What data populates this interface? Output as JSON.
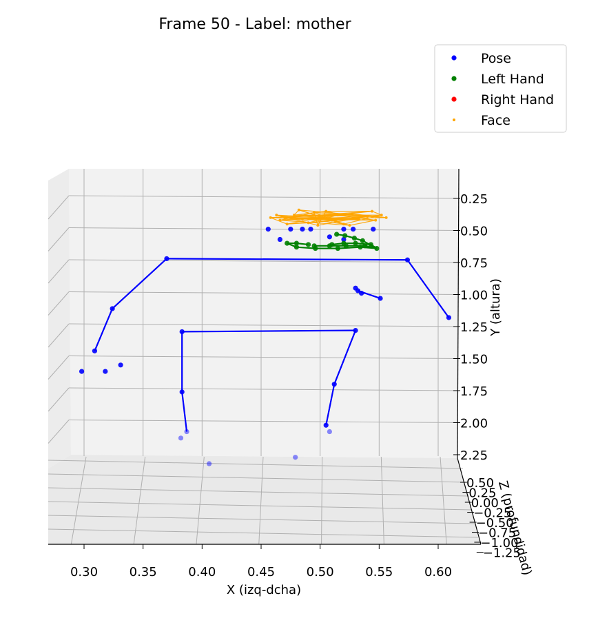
{
  "chart_data": {
    "type": "scatter",
    "title": "Frame 50 - Label: mother",
    "xlabel": "X (izq-dcha)",
    "ylabel": "Y (altura)",
    "zlabel": "Z (profundidad)",
    "xlim": [
      0.27,
      0.63
    ],
    "ylim": [
      0.1,
      2.25
    ],
    "y_inverted": true,
    "x_ticks": [
      "0.30",
      "0.35",
      "0.40",
      "0.45",
      "0.50",
      "0.55",
      "0.60"
    ],
    "y_ticks": [
      "0.25",
      "0.50",
      "0.75",
      "1.00",
      "1.25",
      "1.50",
      "1.75",
      "2.00",
      "2.25"
    ],
    "z_ticks": [
      "0.50",
      "0.25",
      "0.00",
      "−0.25",
      "−0.50",
      "−0.75",
      "−1.00",
      "−1.25"
    ],
    "grid": true,
    "legend_position": "top-right",
    "legend": [
      {
        "label": "Pose",
        "color": "#0000ff"
      },
      {
        "label": "Left Hand",
        "color": "#008000"
      },
      {
        "label": "Right Hand",
        "color": "#ff0000"
      },
      {
        "label": "Face",
        "color": "#ffa500"
      }
    ],
    "series": [
      {
        "name": "Pose",
        "color": "#0000ff",
        "points": [
          {
            "x": 0.456,
            "y": 0.49
          },
          {
            "x": 0.475,
            "y": 0.49
          },
          {
            "x": 0.485,
            "y": 0.49
          },
          {
            "x": 0.492,
            "y": 0.49
          },
          {
            "x": 0.52,
            "y": 0.49
          },
          {
            "x": 0.528,
            "y": 0.49
          },
          {
            "x": 0.545,
            "y": 0.49
          },
          {
            "x": 0.466,
            "y": 0.57
          },
          {
            "x": 0.508,
            "y": 0.55
          },
          {
            "x": 0.52,
            "y": 0.57
          },
          {
            "x": 0.53,
            "y": 0.95
          },
          {
            "x": 0.532,
            "y": 0.97
          },
          {
            "x": 0.535,
            "y": 0.99
          },
          {
            "x": 0.551,
            "y": 1.03
          },
          {
            "x": 0.37,
            "y": 0.72
          },
          {
            "x": 0.574,
            "y": 0.73
          },
          {
            "x": 0.324,
            "y": 1.11
          },
          {
            "x": 0.609,
            "y": 1.18
          },
          {
            "x": 0.309,
            "y": 1.44
          },
          {
            "x": 0.298,
            "y": 1.6
          },
          {
            "x": 0.318,
            "y": 1.6
          },
          {
            "x": 0.331,
            "y": 1.55
          },
          {
            "x": 0.383,
            "y": 1.29
          },
          {
            "x": 0.53,
            "y": 1.28
          },
          {
            "x": 0.383,
            "y": 1.76
          },
          {
            "x": 0.512,
            "y": 1.7
          },
          {
            "x": 0.387,
            "y": 2.07
          },
          {
            "x": 0.382,
            "y": 2.12
          },
          {
            "x": 0.505,
            "y": 2.02
          },
          {
            "x": 0.508,
            "y": 2.07
          },
          {
            "x": 0.406,
            "y": 2.32
          },
          {
            "x": 0.479,
            "y": 2.27
          }
        ]
      },
      {
        "name": "Left Hand",
        "color": "#008000",
        "points": [
          {
            "x": 0.548,
            "y": 0.64
          },
          {
            "x": 0.536,
            "y": 0.58
          },
          {
            "x": 0.529,
            "y": 0.56
          },
          {
            "x": 0.521,
            "y": 0.54
          },
          {
            "x": 0.514,
            "y": 0.53
          },
          {
            "x": 0.543,
            "y": 0.61
          },
          {
            "x": 0.53,
            "y": 0.6
          },
          {
            "x": 0.52,
            "y": 0.6
          },
          {
            "x": 0.51,
            "y": 0.61
          },
          {
            "x": 0.538,
            "y": 0.62
          },
          {
            "x": 0.522,
            "y": 0.62
          },
          {
            "x": 0.508,
            "y": 0.62
          },
          {
            "x": 0.495,
            "y": 0.62
          },
          {
            "x": 0.534,
            "y": 0.63
          },
          {
            "x": 0.515,
            "y": 0.64
          },
          {
            "x": 0.496,
            "y": 0.64
          },
          {
            "x": 0.48,
            "y": 0.63
          },
          {
            "x": 0.472,
            "y": 0.6
          },
          {
            "x": 0.48,
            "y": 0.6
          },
          {
            "x": 0.49,
            "y": 0.61
          }
        ]
      },
      {
        "name": "Face",
        "color": "#ffa500",
        "center": {
          "x": 0.505,
          "y": 0.39
        },
        "points": [
          {
            "x": 0.458,
            "y": 0.4
          },
          {
            "x": 0.463,
            "y": 0.38
          },
          {
            "x": 0.466,
            "y": 0.42
          },
          {
            "x": 0.47,
            "y": 0.4
          },
          {
            "x": 0.478,
            "y": 0.38
          },
          {
            "x": 0.485,
            "y": 0.41
          },
          {
            "x": 0.49,
            "y": 0.44
          },
          {
            "x": 0.495,
            "y": 0.36
          },
          {
            "x": 0.5,
            "y": 0.4
          },
          {
            "x": 0.505,
            "y": 0.35
          },
          {
            "x": 0.51,
            "y": 0.42
          },
          {
            "x": 0.515,
            "y": 0.38
          },
          {
            "x": 0.52,
            "y": 0.45
          },
          {
            "x": 0.527,
            "y": 0.37
          },
          {
            "x": 0.533,
            "y": 0.41
          },
          {
            "x": 0.54,
            "y": 0.39
          },
          {
            "x": 0.547,
            "y": 0.42
          },
          {
            "x": 0.552,
            "y": 0.38
          },
          {
            "x": 0.556,
            "y": 0.4
          },
          {
            "x": 0.472,
            "y": 0.45
          },
          {
            "x": 0.498,
            "y": 0.46
          },
          {
            "x": 0.525,
            "y": 0.46
          },
          {
            "x": 0.544,
            "y": 0.35
          },
          {
            "x": 0.482,
            "y": 0.34
          }
        ]
      }
    ],
    "connections": {
      "Pose": [
        [
          14,
          15
        ],
        [
          14,
          16
        ],
        [
          16,
          18
        ],
        [
          15,
          17
        ],
        [
          11,
          13
        ],
        [
          22,
          23
        ],
        [
          22,
          24
        ],
        [
          24,
          26
        ],
        [
          23,
          25
        ],
        [
          25,
          28
        ]
      ],
      "Left Hand": [
        [
          0,
          1
        ],
        [
          1,
          2
        ],
        [
          2,
          3
        ],
        [
          3,
          4
        ],
        [
          0,
          5
        ],
        [
          5,
          6
        ],
        [
          6,
          7
        ],
        [
          7,
          8
        ],
        [
          0,
          9
        ],
        [
          9,
          10
        ],
        [
          10,
          11
        ],
        [
          11,
          12
        ],
        [
          0,
          13
        ],
        [
          13,
          14
        ],
        [
          14,
          15
        ],
        [
          15,
          16
        ],
        [
          16,
          17
        ],
        [
          17,
          18
        ],
        [
          18,
          19
        ]
      ]
    }
  }
}
